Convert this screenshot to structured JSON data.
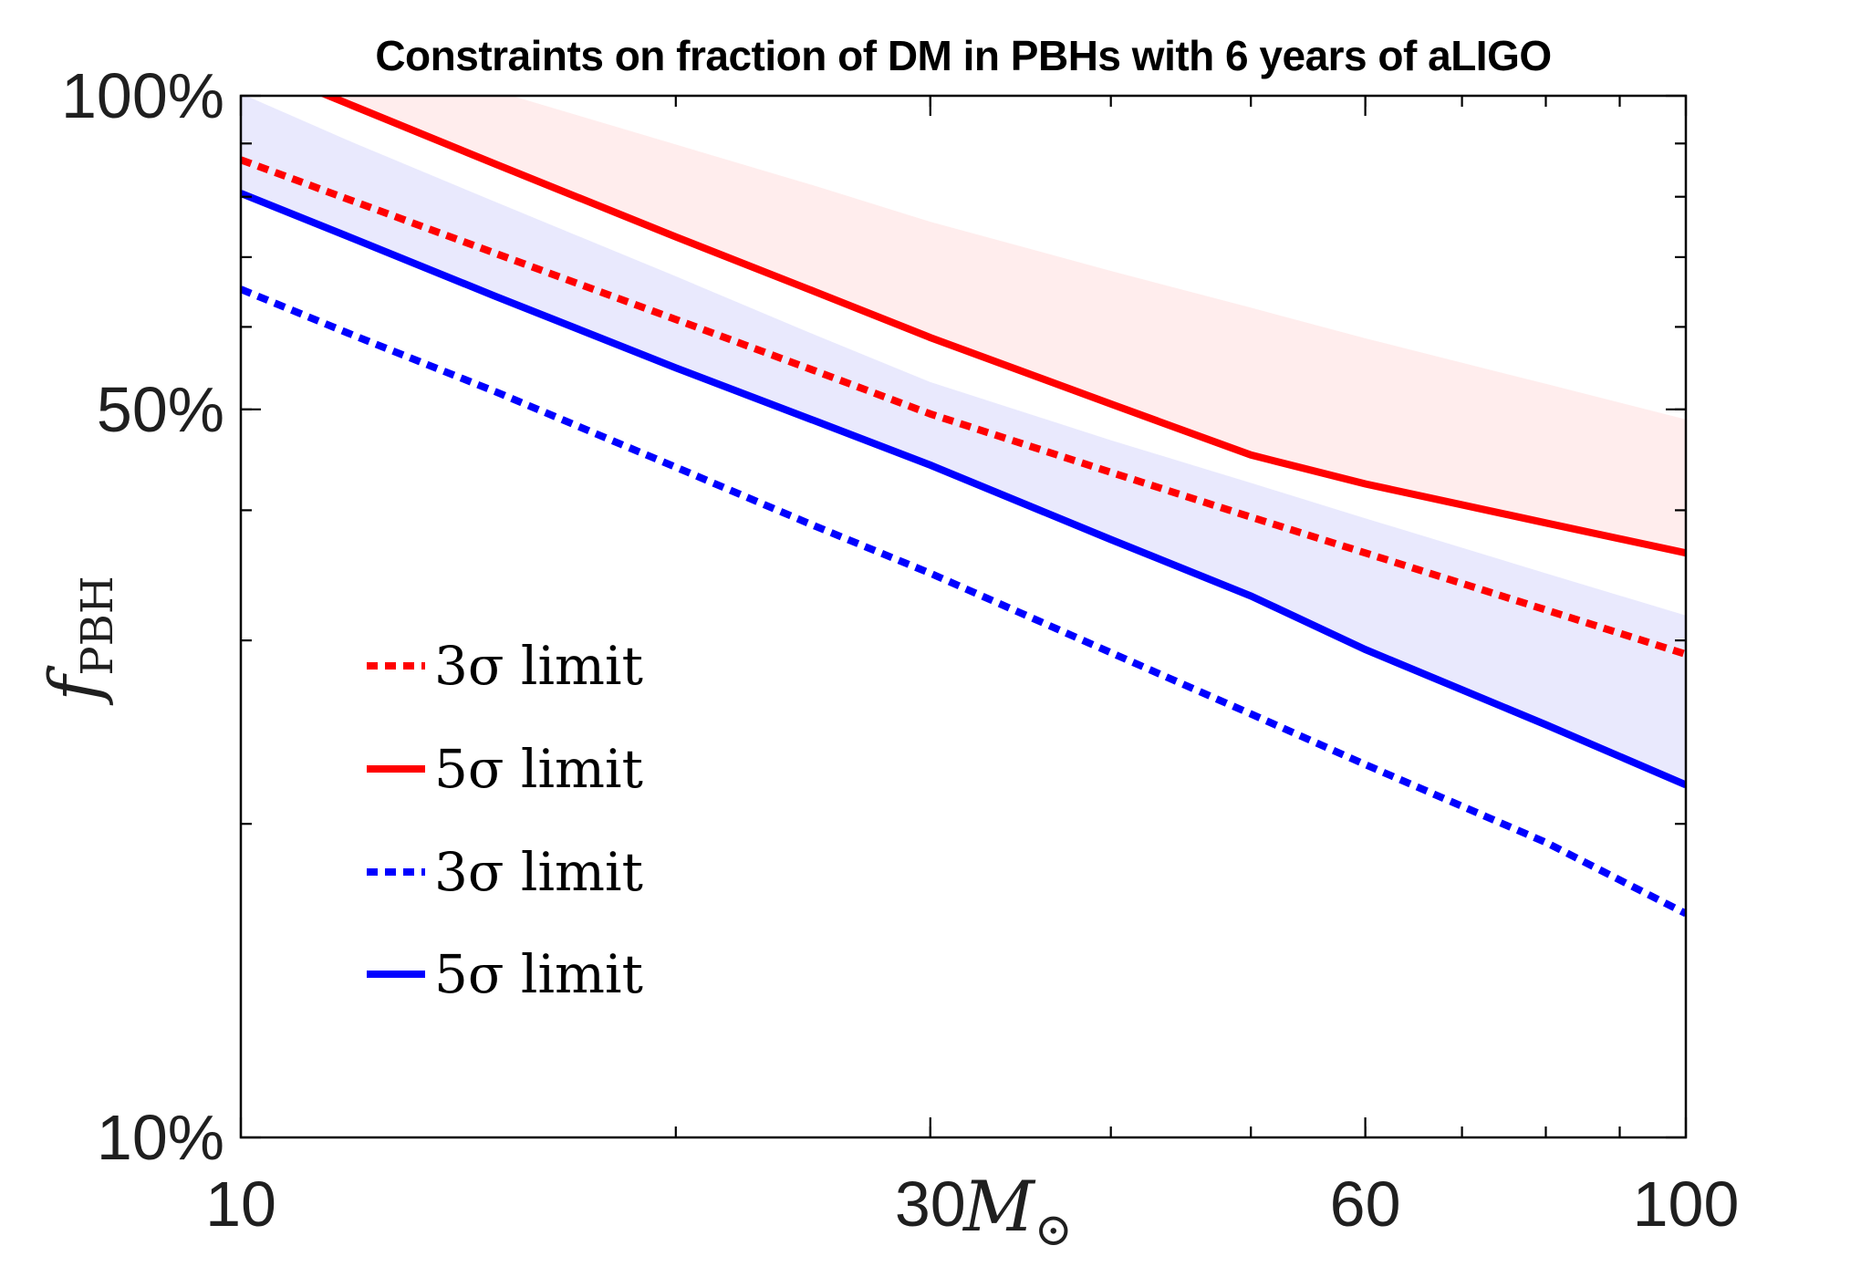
{
  "title": "Constraints on fraction of DM in PBHs with 6 years of aLIGO",
  "axes": {
    "xlabel_main": "M",
    "xlabel_sub": "⊙",
    "ylabel_main": "f",
    "ylabel_sub": "PBH",
    "xscale": "log",
    "yscale": "log",
    "xlim": [
      10,
      100
    ],
    "ylim_percent": [
      10,
      100
    ],
    "x_ticks": [
      {
        "value": 10,
        "label": "10"
      },
      {
        "value": 30,
        "label": "30"
      },
      {
        "value": 60,
        "label": "60"
      },
      {
        "value": 100,
        "label": "100"
      }
    ],
    "x_minor_ticks": [
      20,
      30,
      40,
      50,
      60,
      70,
      80,
      90
    ],
    "y_ticks": [
      {
        "value": 100,
        "label": "100%"
      },
      {
        "value": 50,
        "label": "50%"
      },
      {
        "value": 10,
        "label": "10%"
      }
    ],
    "y_minor_ticks": [
      90,
      80,
      70,
      60,
      50,
      40,
      30,
      20
    ]
  },
  "legend": [
    {
      "label": "3σ limit",
      "color": "#ff0000",
      "style": "dotted"
    },
    {
      "label": "5σ limit",
      "color": "#ff0000",
      "style": "solid"
    },
    {
      "label": "3σ limit",
      "color": "#0000ff",
      "style": "dotted"
    },
    {
      "label": "5σ limit",
      "color": "#0000ff",
      "style": "solid"
    }
  ],
  "colors": {
    "red_line": "#ff0000",
    "blue_line": "#0000ff",
    "red_band_fill": "rgba(255,0,0,0.07)",
    "blue_band_fill": "rgba(0,0,230,0.085)",
    "axis": "#000000",
    "tick_text": "#1f1f1f"
  },
  "chart_data": {
    "type": "line",
    "title": "Constraints on fraction of DM in PBHs with 6 years of aLIGO",
    "xlabel": "M⊙ (solar masses)",
    "ylabel": "f_PBH (percent of dark matter)",
    "xscale": "log",
    "yscale": "log",
    "xlim": [
      10,
      100
    ],
    "ylim": [
      10,
      100
    ],
    "grid": false,
    "legend_position": "center-left",
    "x": [
      10,
      12,
      15,
      20,
      25,
      30,
      40,
      50,
      60,
      80,
      100
    ],
    "series": [
      {
        "name": "3σ limit (red dotted)",
        "color": "#ff0000",
        "style": "dotted",
        "values": [
          86.8,
          79.1,
          70.6,
          61.0,
          54.4,
          49.5,
          43.5,
          39.4,
          36.4,
          32.1,
          29.1
        ]
      },
      {
        "name": "5σ limit (red solid)",
        "color": "#ff0000",
        "style": "solid",
        "values": [
          108.3,
          97.6,
          86.0,
          73.2,
          64.8,
          58.6,
          50.6,
          45.2,
          42.4,
          38.9,
          36.4
        ]
      },
      {
        "name": "3σ limit (blue dotted)",
        "color": "#0000ff",
        "style": "dotted",
        "values": [
          65.2,
          58.8,
          52.0,
          44.0,
          38.6,
          34.8,
          29.2,
          25.5,
          22.8,
          19.2,
          16.4
        ]
      },
      {
        "name": "5σ limit (blue solid)",
        "color": "#0000ff",
        "style": "solid",
        "values": [
          80.6,
          72.8,
          64.2,
          54.8,
          48.7,
          44.2,
          37.5,
          33.1,
          29.4,
          24.9,
          21.8
        ]
      }
    ],
    "bands": [
      {
        "name": "red uncertainty band",
        "fill": "rgba(255,0,0,0.07)",
        "upper": [
          119.5,
          110.8,
          101.1,
          89.8,
          81.9,
          75.7,
          67.9,
          62.6,
          58.5,
          52.9,
          48.9
        ],
        "lower": [
          108.3,
          97.6,
          86.0,
          73.2,
          64.8,
          58.6,
          50.6,
          45.2,
          42.4,
          38.9,
          36.4
        ]
      },
      {
        "name": "blue uncertainty band",
        "fill": "rgba(0,0,230,0.085)",
        "upper": [
          100.5,
          90.0,
          79.1,
          67.1,
          58.9,
          53.1,
          46.7,
          42.5,
          39.3,
          34.8,
          31.7
        ],
        "lower": [
          80.6,
          72.8,
          64.2,
          54.8,
          48.7,
          44.2,
          37.5,
          33.1,
          29.4,
          24.9,
          21.8
        ]
      }
    ],
    "units": "percent"
  }
}
